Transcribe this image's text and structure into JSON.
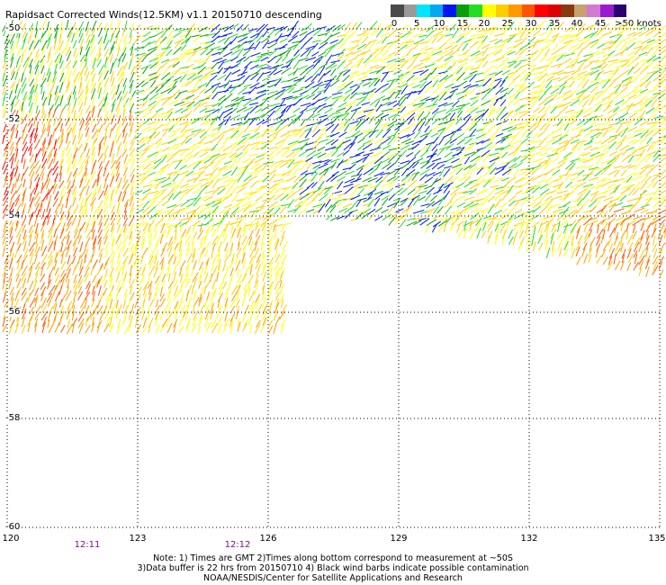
{
  "title": "Rapidsact Corrected Winds(12.5KM) v1.1 20150710 descending",
  "scale": {
    "colors": [
      "#4a4a4a",
      "#9a9a9a",
      "#00e5ff",
      "#00a8f0",
      "#0018f0",
      "#0a9f0a",
      "#22dd22",
      "#ffff00",
      "#ffcc00",
      "#ff9900",
      "#ff5500",
      "#ff0000",
      "#dd0000",
      "#8a3a10",
      "#c9a070",
      "#d27ad2",
      "#9b1ad0",
      "#2a0070"
    ],
    "labels": [
      "0",
      "5",
      "10",
      "15",
      "20",
      "25",
      "30",
      "35",
      "40",
      "45",
      ">50 knots"
    ]
  },
  "axes": {
    "lon_labels": [
      "120",
      "123",
      "126",
      "129",
      "132",
      "135"
    ],
    "lat_labels": [
      "-50",
      "-52",
      "-54",
      "-56",
      "-58",
      "-60"
    ]
  },
  "times": [
    "12:11",
    "12:12"
  ],
  "notes": [
    "Note: 1) Times are GMT 2)Times along bottom correspond to measurement at ~50S",
    "3)Data buffer is 22 hrs from 20150710 4) Black wind barbs indicate possible contamination",
    "NOAA/NESDIS/Center for Satellite Applications and Research"
  ]
}
